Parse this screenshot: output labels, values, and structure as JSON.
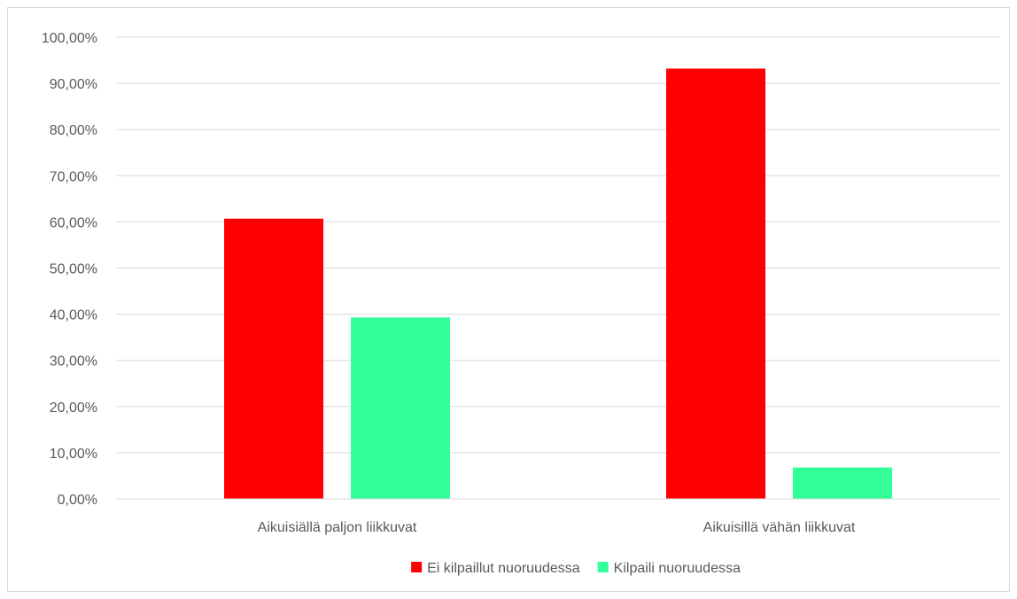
{
  "chart_data": {
    "type": "bar",
    "categories": [
      "Aikuisiällä paljon liikkuvat",
      "Aikuisillä vähän liikkuvat"
    ],
    "series": [
      {
        "name": "Ei kilpaillut nuoruudessa",
        "color": "#ff0000",
        "values": [
          60.7,
          93.2
        ]
      },
      {
        "name": "Kilpaili nuoruudessa",
        "color": "#33ff99",
        "values": [
          39.3,
          6.8
        ]
      }
    ],
    "y_ticks": [
      "0,00%",
      "10,00%",
      "20,00%",
      "30,00%",
      "40,00%",
      "50,00%",
      "60,00%",
      "70,00%",
      "80,00%",
      "90,00%",
      "100,00%"
    ],
    "ylim": [
      0,
      100
    ],
    "grid": true,
    "legend_position": "bottom",
    "gridline_color": "#d9d9d9"
  }
}
